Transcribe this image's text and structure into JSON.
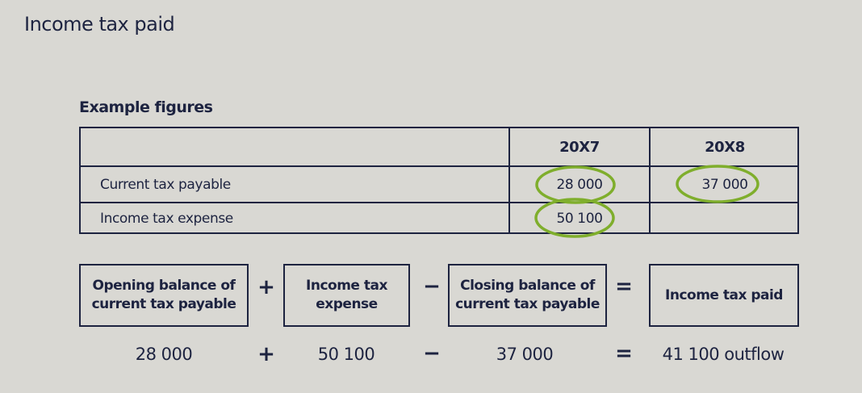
{
  "title": "Income tax paid",
  "example": {
    "heading": "Example figures",
    "columns": [
      "",
      "20X7",
      "20X8"
    ],
    "rows": [
      {
        "label": "Current tax payable",
        "y20x7": "28 000",
        "y20x8": "37 000"
      },
      {
        "label": "Income tax expense",
        "y20x7": "50 100",
        "y20x8": ""
      }
    ],
    "highlight_color": "#7fae2c"
  },
  "formula": {
    "terms": [
      "Opening balance of current tax payable",
      "Income tax expense",
      "Closing balance of current tax payable",
      "Income tax paid"
    ],
    "operators": [
      "+",
      "−",
      "="
    ],
    "values": [
      "28 000",
      "50 100",
      "37 000",
      "41 100 outflow"
    ]
  }
}
